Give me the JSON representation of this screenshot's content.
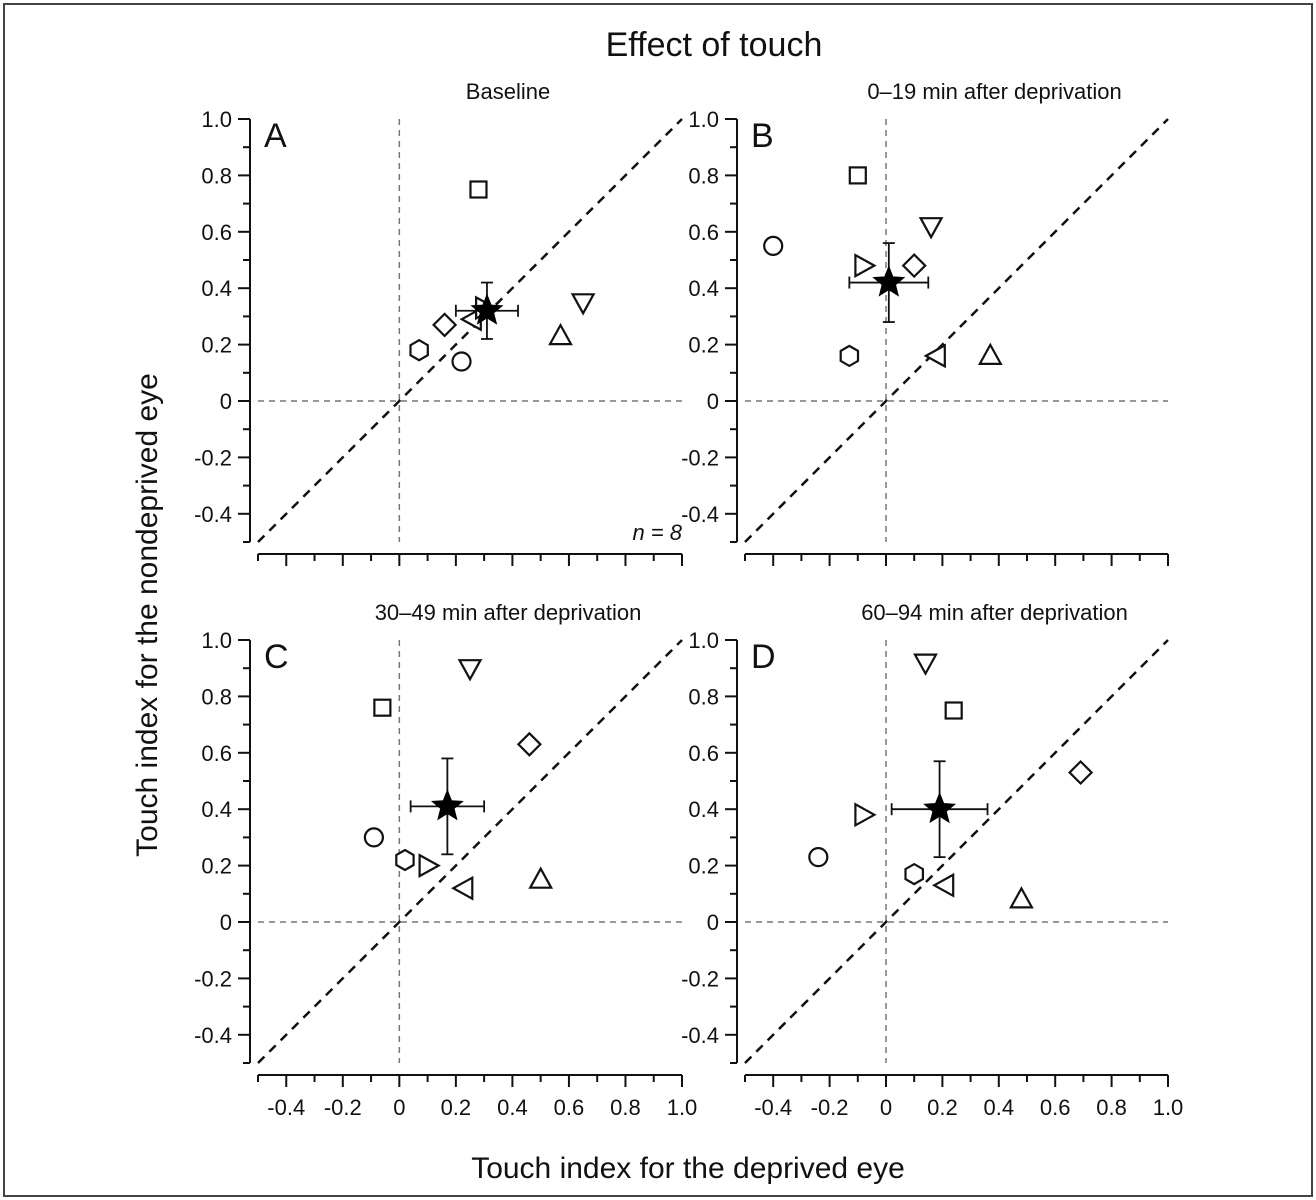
{
  "figure": {
    "title": "Effect of touch",
    "xlabel": "Touch index for the deprived eye",
    "ylabel": "Touch index for the nondeprived eye"
  },
  "chart_data": [
    {
      "type": "scatter",
      "panel": "A",
      "title": "Baseline",
      "annotation": "n = 8",
      "xlim": [
        -0.5,
        1.0
      ],
      "ylim": [
        -0.5,
        1.0
      ],
      "xticks": [
        "-0.4",
        "-0.2",
        "0",
        "0.2",
        "0.4",
        "0.6",
        "0.8",
        "1.0"
      ],
      "yticks": [
        "-0.4",
        "-0.2",
        "0",
        "0.2",
        "0.4",
        "0.6",
        "0.8",
        "1.0"
      ],
      "reference_lines": [
        "x = 0",
        "y = 0",
        "y = x"
      ],
      "points": [
        {
          "marker": "square",
          "x": 0.28,
          "y": 0.75
        },
        {
          "marker": "circle",
          "x": 0.22,
          "y": 0.14
        },
        {
          "marker": "hexagon",
          "x": 0.07,
          "y": 0.18
        },
        {
          "marker": "diamond",
          "x": 0.16,
          "y": 0.27
        },
        {
          "marker": "triangle-left",
          "x": 0.26,
          "y": 0.29
        },
        {
          "marker": "triangle-right",
          "x": 0.3,
          "y": 0.33
        },
        {
          "marker": "triangle-up",
          "x": 0.57,
          "y": 0.23
        },
        {
          "marker": "triangle-down",
          "x": 0.65,
          "y": 0.35
        }
      ],
      "mean": {
        "x": 0.31,
        "y": 0.32,
        "x_err": 0.11,
        "y_err": 0.1
      }
    },
    {
      "type": "scatter",
      "panel": "B",
      "title": "0–19 min after deprivation",
      "xlim": [
        -0.5,
        1.0
      ],
      "ylim": [
        -0.5,
        1.0
      ],
      "xticks": [
        "-0.4",
        "-0.2",
        "0",
        "0.2",
        "0.4",
        "0.6",
        "0.8",
        "1.0"
      ],
      "yticks": [
        "-0.4",
        "-0.2",
        "0",
        "0.2",
        "0.4",
        "0.6",
        "0.8",
        "1.0"
      ],
      "reference_lines": [
        "x = 0",
        "y = 0",
        "y = x"
      ],
      "points": [
        {
          "marker": "square",
          "x": -0.1,
          "y": 0.8
        },
        {
          "marker": "circle",
          "x": -0.4,
          "y": 0.55
        },
        {
          "marker": "triangle-down",
          "x": 0.16,
          "y": 0.62
        },
        {
          "marker": "triangle-right",
          "x": -0.08,
          "y": 0.48
        },
        {
          "marker": "diamond",
          "x": 0.1,
          "y": 0.48
        },
        {
          "marker": "hexagon",
          "x": -0.13,
          "y": 0.16
        },
        {
          "marker": "triangle-left",
          "x": 0.18,
          "y": 0.16
        },
        {
          "marker": "triangle-up",
          "x": 0.37,
          "y": 0.16
        }
      ],
      "mean": {
        "x": 0.01,
        "y": 0.42,
        "x_err": 0.14,
        "y_err": 0.14
      }
    },
    {
      "type": "scatter",
      "panel": "C",
      "title": "30–49 min after deprivation",
      "xlim": [
        -0.5,
        1.0
      ],
      "ylim": [
        -0.5,
        1.0
      ],
      "xticks": [
        "-0.4",
        "-0.2",
        "0",
        "0.2",
        "0.4",
        "0.6",
        "0.8",
        "1.0"
      ],
      "yticks": [
        "-0.4",
        "-0.2",
        "0",
        "0.2",
        "0.4",
        "0.6",
        "0.8",
        "1.0"
      ],
      "reference_lines": [
        "x = 0",
        "y = 0",
        "y = x"
      ],
      "points": [
        {
          "marker": "triangle-down",
          "x": 0.25,
          "y": 0.9
        },
        {
          "marker": "square",
          "x": -0.06,
          "y": 0.76
        },
        {
          "marker": "diamond",
          "x": 0.46,
          "y": 0.63
        },
        {
          "marker": "circle",
          "x": -0.09,
          "y": 0.3
        },
        {
          "marker": "hexagon",
          "x": 0.02,
          "y": 0.22
        },
        {
          "marker": "triangle-right",
          "x": 0.1,
          "y": 0.2
        },
        {
          "marker": "triangle-left",
          "x": 0.23,
          "y": 0.12
        },
        {
          "marker": "triangle-up",
          "x": 0.5,
          "y": 0.15
        }
      ],
      "mean": {
        "x": 0.17,
        "y": 0.41,
        "x_err": 0.13,
        "y_err": 0.17
      }
    },
    {
      "type": "scatter",
      "panel": "D",
      "title": "60–94 min after deprivation",
      "xlim": [
        -0.5,
        1.0
      ],
      "ylim": [
        -0.5,
        1.0
      ],
      "xticks": [
        "-0.4",
        "-0.2",
        "0",
        "0.2",
        "0.4",
        "0.6",
        "0.8",
        "1.0"
      ],
      "yticks": [
        "-0.4",
        "-0.2",
        "0",
        "0.2",
        "0.4",
        "0.6",
        "0.8",
        "1.0"
      ],
      "reference_lines": [
        "x = 0",
        "y = 0",
        "y = x"
      ],
      "points": [
        {
          "marker": "triangle-down",
          "x": 0.14,
          "y": 0.92
        },
        {
          "marker": "square",
          "x": 0.24,
          "y": 0.75
        },
        {
          "marker": "diamond",
          "x": 0.69,
          "y": 0.53
        },
        {
          "marker": "triangle-right",
          "x": -0.08,
          "y": 0.38
        },
        {
          "marker": "circle",
          "x": -0.24,
          "y": 0.23
        },
        {
          "marker": "hexagon",
          "x": 0.1,
          "y": 0.17
        },
        {
          "marker": "triangle-left",
          "x": 0.21,
          "y": 0.13
        },
        {
          "marker": "triangle-up",
          "x": 0.48,
          "y": 0.08
        }
      ],
      "mean": {
        "x": 0.19,
        "y": 0.4,
        "x_err": 0.17,
        "y_err": 0.17
      }
    }
  ]
}
